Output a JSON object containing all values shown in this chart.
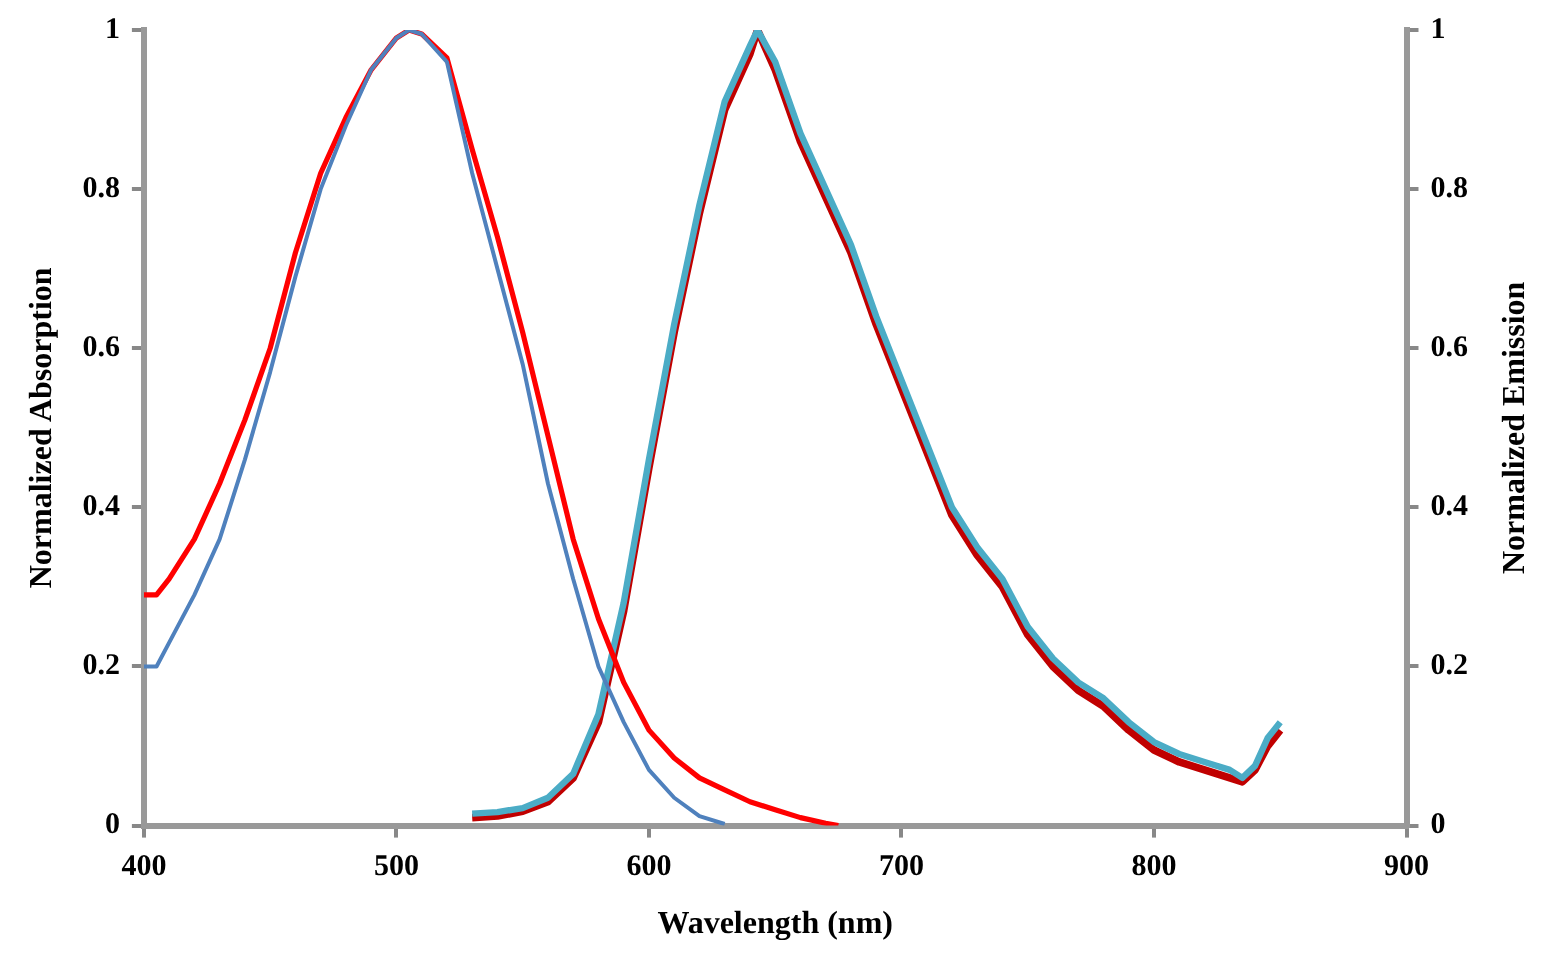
{
  "chart_data": {
    "type": "line",
    "xlabel": "Wavelength (nm)",
    "ylabel": "Normalized Absorption",
    "y2label": "Normalized Emission",
    "xlim": [
      400,
      900
    ],
    "xticks": [
      400,
      500,
      600,
      700,
      800,
      900
    ],
    "ylim": [
      0,
      1
    ],
    "yticks": [
      0,
      0.2,
      0.4,
      0.6,
      0.8,
      1
    ],
    "y2lim": [
      0,
      1
    ],
    "y2ticks": [
      0,
      0.2,
      0.4,
      0.6,
      0.8,
      1
    ],
    "grid": false,
    "legend": false,
    "marker": "none",
    "line_style": "solid",
    "series": [
      {
        "color": "#4f81bd",
        "x": [
          400,
          405,
          410,
          420,
          430,
          440,
          450,
          460,
          470,
          480,
          490,
          500,
          505,
          510,
          520,
          530,
          540,
          550,
          560,
          570,
          580,
          590,
          600,
          610,
          620,
          630
        ],
        "values": [
          0.2,
          0.2,
          0.23,
          0.29,
          0.36,
          0.46,
          0.57,
          0.69,
          0.8,
          0.88,
          0.95,
          0.99,
          1,
          0.995,
          0.96,
          0.82,
          0.7,
          0.58,
          0.43,
          0.31,
          0.2,
          0.13,
          0.07,
          0.035,
          0.012,
          0.002
        ]
      },
      {
        "color": "#ff0000",
        "x": [
          400,
          405,
          410,
          420,
          430,
          440,
          450,
          460,
          470,
          480,
          490,
          500,
          505,
          510,
          520,
          530,
          540,
          550,
          560,
          570,
          580,
          590,
          600,
          610,
          620,
          630,
          640,
          650,
          660,
          670,
          675
        ],
        "values": [
          0.29,
          0.29,
          0.31,
          0.36,
          0.43,
          0.51,
          0.6,
          0.72,
          0.82,
          0.89,
          0.95,
          0.99,
          1,
          0.995,
          0.965,
          0.85,
          0.74,
          0.62,
          0.49,
          0.36,
          0.26,
          0.18,
          0.12,
          0.085,
          0.06,
          0.045,
          0.03,
          0.02,
          0.01,
          0.003,
          0
        ]
      },
      {
        "color": "#4bacc6",
        "axis": "y2",
        "x": [
          530,
          540,
          550,
          560,
          570,
          580,
          590,
          600,
          610,
          620,
          630,
          640,
          643,
          650,
          660,
          670,
          680,
          690,
          700,
          710,
          720,
          730,
          740,
          750,
          760,
          770,
          780,
          790,
          800,
          810,
          820,
          830,
          835,
          840,
          845,
          850
        ],
        "values": [
          0.015,
          0.017,
          0.022,
          0.035,
          0.065,
          0.14,
          0.28,
          0.46,
          0.63,
          0.78,
          0.91,
          0.98,
          1,
          0.96,
          0.87,
          0.8,
          0.73,
          0.64,
          0.56,
          0.48,
          0.4,
          0.35,
          0.31,
          0.25,
          0.21,
          0.18,
          0.16,
          0.13,
          0.105,
          0.09,
          0.08,
          0.07,
          0.06,
          0.075,
          0.11,
          0.13
        ]
      },
      {
        "color": "#c00000",
        "axis": "y2",
        "x": [
          530,
          540,
          550,
          560,
          570,
          580,
          590,
          600,
          610,
          620,
          630,
          640,
          643,
          650,
          660,
          670,
          680,
          690,
          700,
          710,
          720,
          730,
          740,
          750,
          760,
          770,
          780,
          790,
          800,
          810,
          820,
          830,
          835,
          840,
          845,
          850
        ],
        "values": [
          0.01,
          0.012,
          0.018,
          0.03,
          0.06,
          0.13,
          0.27,
          0.45,
          0.62,
          0.77,
          0.9,
          0.97,
          1,
          0.95,
          0.86,
          0.79,
          0.72,
          0.63,
          0.55,
          0.47,
          0.39,
          0.34,
          0.3,
          0.24,
          0.2,
          0.17,
          0.15,
          0.12,
          0.095,
          0.08,
          0.07,
          0.06,
          0.055,
          0.07,
          0.1,
          0.12
        ]
      }
    ]
  }
}
